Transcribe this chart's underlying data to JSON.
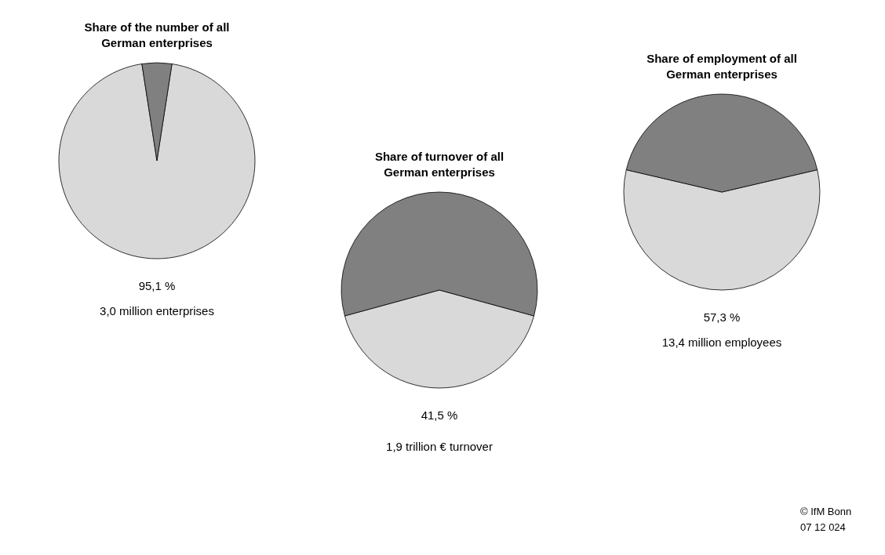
{
  "chart_data": [
    {
      "type": "pie",
      "title": "Share of the number of all German enterprises",
      "categories": [
        null,
        null
      ],
      "values": [
        95.1,
        4.9
      ],
      "colors": [
        "#d9d9d9",
        "#808080"
      ],
      "annotations": [
        "95,1 %",
        "3,0 million enterprises"
      ]
    },
    {
      "type": "pie",
      "title": "Share of turnover of all German enterprises",
      "categories": [
        null,
        null
      ],
      "values": [
        41.5,
        58.5
      ],
      "colors": [
        "#d9d9d9",
        "#808080"
      ],
      "annotations": [
        "41,5 %",
        "1,9 trillion € turnover"
      ]
    },
    {
      "type": "pie",
      "title": "Share of employment of all German enterprises",
      "categories": [
        null,
        null
      ],
      "values": [
        57.3,
        42.7
      ],
      "colors": [
        "#d9d9d9",
        "#808080"
      ],
      "annotations": [
        "57,3 %",
        "13,4 million employees",
        "© IfM Bonn",
        "07 12 024"
      ]
    }
  ]
}
